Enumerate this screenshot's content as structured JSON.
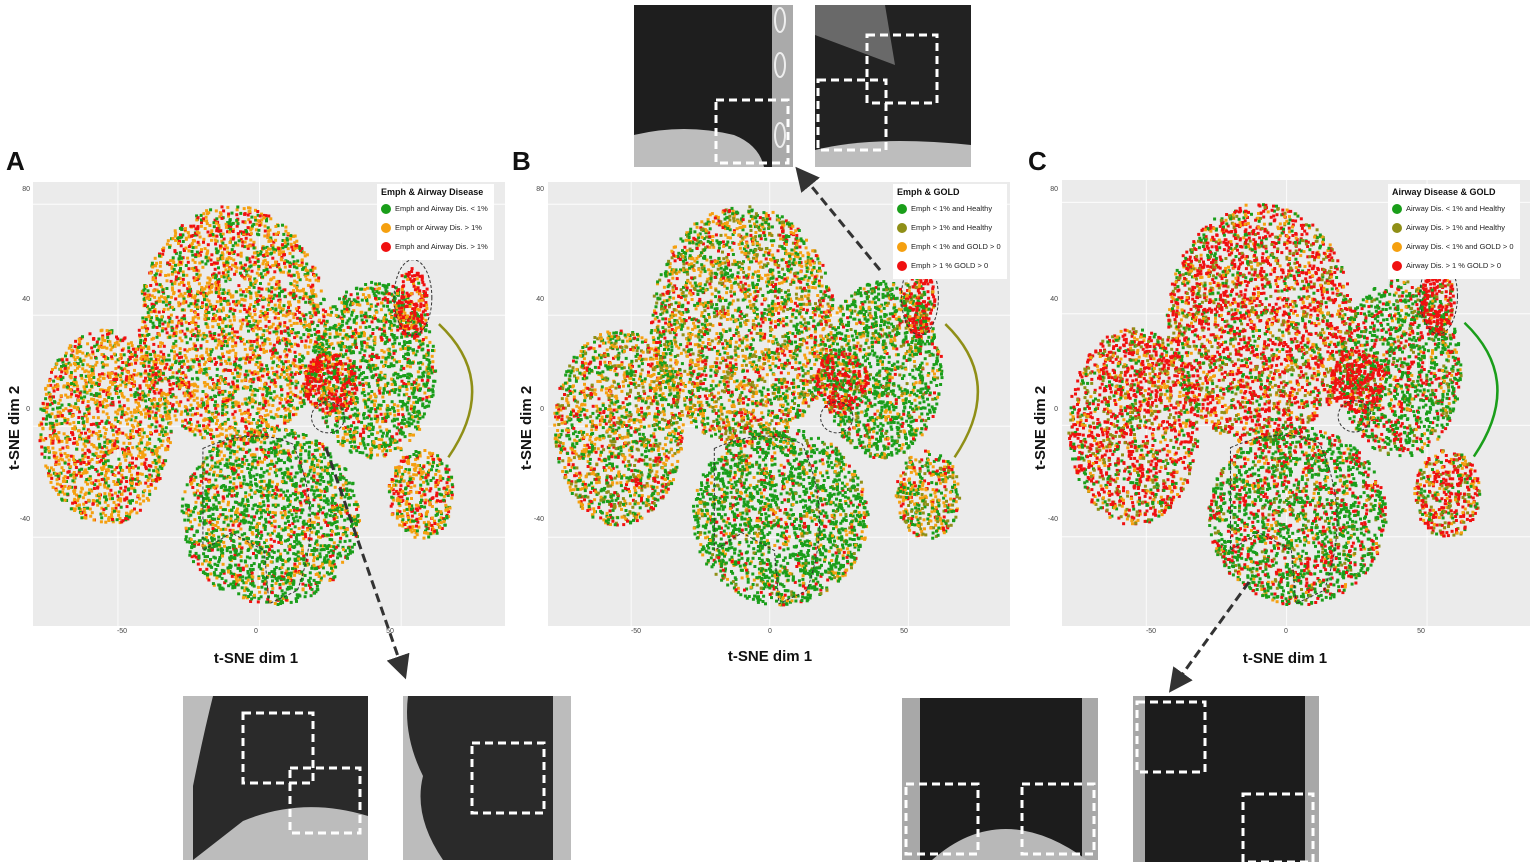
{
  "figure": {
    "panels": [
      {
        "id": "A",
        "letter": "A",
        "legend": {
          "title": "Emph & Airway Disease",
          "items": [
            {
              "label": "Emph and Airway Dis. < 1%",
              "color": "#1a9e1a"
            },
            {
              "label": "Emph or Airway Dis. > 1%",
              "color": "#f5a00f"
            },
            {
              "label": "Emph and Airway Dis.  > 1%",
              "color": "#f01010"
            }
          ]
        },
        "xlabel": "t-SNE dim 1",
        "ylabel": "t-SNE dim 2"
      },
      {
        "id": "B",
        "letter": "B",
        "legend": {
          "title": "Emph & GOLD",
          "items": [
            {
              "label": "Emph < 1% and Healthy",
              "color": "#1a9e1a"
            },
            {
              "label": "Emph > 1% and Healthy",
              "color": "#8f8f17"
            },
            {
              "label": "Emph < 1% and GOLD > 0",
              "color": "#f5a00f"
            },
            {
              "label": "Emph > 1 % GOLD > 0",
              "color": "#f01010"
            }
          ]
        },
        "xlabel": "t-SNE dim 1",
        "ylabel": "t-SNE dim 2"
      },
      {
        "id": "C",
        "letter": "C",
        "legend": {
          "title": "Airway Disease & GOLD",
          "items": [
            {
              "label": "Airway Dis.  < 1% and Healthy",
              "color": "#1a9e1a"
            },
            {
              "label": "Airway Dis. > 1% and Healthy",
              "color": "#8f8f17"
            },
            {
              "label": "Airway Dis. < 1% and GOLD > 0",
              "color": "#f5a00f"
            },
            {
              "label": "Airway Dis. > 1 % GOLD > 0",
              "color": "#f01010"
            }
          ]
        },
        "xlabel": "t-SNE dim 1",
        "ylabel": "t-SNE dim 2"
      }
    ],
    "xticks": [
      "-50",
      "0",
      "50"
    ],
    "yticks": [
      "80",
      "40",
      "0",
      "-40"
    ]
  },
  "chart_data": [
    {
      "type": "scatter",
      "title": "Emph & Airway Disease",
      "xlabel": "t-SNE dim 1",
      "ylabel": "t-SNE dim 2",
      "xlim": [
        -82,
        90
      ],
      "ylim": [
        -78,
        83
      ],
      "xticks": [
        -50,
        0,
        50
      ],
      "yticks": [
        80,
        40,
        0,
        -40
      ],
      "grid": true,
      "legend_position": "top-right",
      "series": [
        {
          "name": "Emph and Airway Dis. < 1%",
          "color": "#1a9e1a",
          "dominant_region": "lower-center cluster (x -20..25, y -70..-10) and right cluster (x 25..55, y -20..10)"
        },
        {
          "name": "Emph or Airway Dis. > 1%",
          "color": "#f5a00f",
          "dominant_region": "periphery and upper clusters"
        },
        {
          "name": "Emph and Airway Dis.  > 1%",
          "color": "#f01010",
          "dominant_region": "outer edges, small island near (45,40), small cluster near (20,-5)"
        }
      ],
      "annotations": [
        "dashed outline lower-center cluster",
        "dashed outline island near (45,40)",
        "dashed outline small cluster near (20,-5)",
        "arrow to CT images below"
      ]
    },
    {
      "type": "scatter",
      "title": "Emph & GOLD",
      "xlabel": "t-SNE dim 1",
      "ylabel": "t-SNE dim 2",
      "xlim": [
        -82,
        90
      ],
      "ylim": [
        -78,
        83
      ],
      "xticks": [
        -50,
        0,
        50
      ],
      "yticks": [
        80,
        40,
        0,
        -40
      ],
      "grid": true,
      "legend_position": "top-right",
      "series": [
        {
          "name": "Emph < 1% and Healthy",
          "color": "#1a9e1a",
          "dominant_region": "lower-center and center clusters"
        },
        {
          "name": "Emph > 1% and Healthy",
          "color": "#8f8f17",
          "dominant_region": "sparse, mixed"
        },
        {
          "name": "Emph < 1% and GOLD > 0",
          "color": "#f5a00f",
          "dominant_region": "periphery and upper clusters"
        },
        {
          "name": "Emph > 1 % GOLD > 0",
          "color": "#f01010",
          "dominant_region": "upper-center patch, outer edges, small cluster near (20,-5)"
        }
      ],
      "annotations": [
        "arrow from island near (45,40) to CT images above"
      ]
    },
    {
      "type": "scatter",
      "title": "Airway Disease & GOLD",
      "xlabel": "t-SNE dim 1",
      "ylabel": "t-SNE dim 2",
      "xlim": [
        -82,
        90
      ],
      "ylim": [
        -78,
        83
      ],
      "xticks": [
        -50,
        0,
        50
      ],
      "yticks": [
        80,
        40,
        0,
        -40
      ],
      "grid": true,
      "legend_position": "top-right",
      "series": [
        {
          "name": "Airway Dis.  < 1% and Healthy",
          "color": "#1a9e1a",
          "dominant_region": "lower-center cluster and right cluster"
        },
        {
          "name": "Airway Dis. > 1% and Healthy",
          "color": "#8f8f17",
          "dominant_region": "mixed in center"
        },
        {
          "name": "Airway Dis. < 1% and GOLD > 0",
          "color": "#f5a00f",
          "dominant_region": "sparse, mixed"
        },
        {
          "name": "Airway Dis. > 1 % GOLD > 0",
          "color": "#f01010",
          "dominant_region": "most of periphery and upper clusters"
        }
      ],
      "annotations": [
        "arrow from lower-center cluster to CT images below"
      ]
    }
  ]
}
